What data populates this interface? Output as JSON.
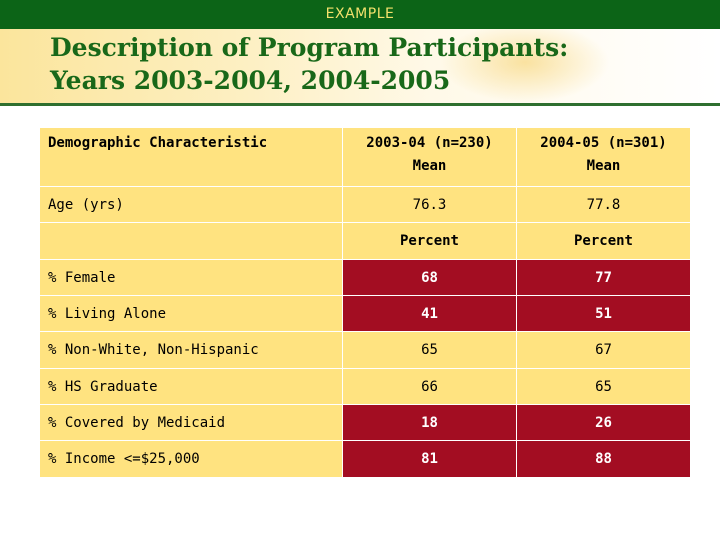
{
  "banner": {
    "label": "EXAMPLE"
  },
  "title": {
    "line1": "Description of Program Participants:",
    "line2": "Years 2003-2004, 2004-2005"
  },
  "colors": {
    "top_bar": "#0c6417",
    "banner_text": "#f3e16c",
    "title_text": "#196819",
    "cell_background": "#ffe380",
    "highlight_cell": "#a30d22"
  },
  "table": {
    "header": {
      "characteristic": "Demographic Characteristic",
      "col1_line1": "2003-04 (n=230)",
      "col1_line2": "Mean",
      "col2_line1": "2004-05 (n=301)",
      "col2_line2": "Mean"
    },
    "age_row": {
      "label": "Age (yrs)",
      "v1": "76.3",
      "v2": "77.8"
    },
    "subheader": {
      "label": "",
      "col1": "Percent",
      "col2": "Percent"
    },
    "rows": [
      {
        "label": "% Female",
        "v1": "68",
        "v2": "77",
        "highlight": true
      },
      {
        "label": "% Living Alone",
        "v1": "41",
        "v2": "51",
        "highlight": true
      },
      {
        "label": "% Non-White, Non-Hispanic",
        "v1": "65",
        "v2": "67",
        "highlight": false
      },
      {
        "label": "% HS Graduate",
        "v1": "66",
        "v2": "65",
        "highlight": false
      },
      {
        "label": "% Covered by Medicaid",
        "v1": "18",
        "v2": "26",
        "highlight": true
      },
      {
        "label": "% Income <=$25,000",
        "v1": "81",
        "v2": "88",
        "highlight": true
      }
    ]
  }
}
